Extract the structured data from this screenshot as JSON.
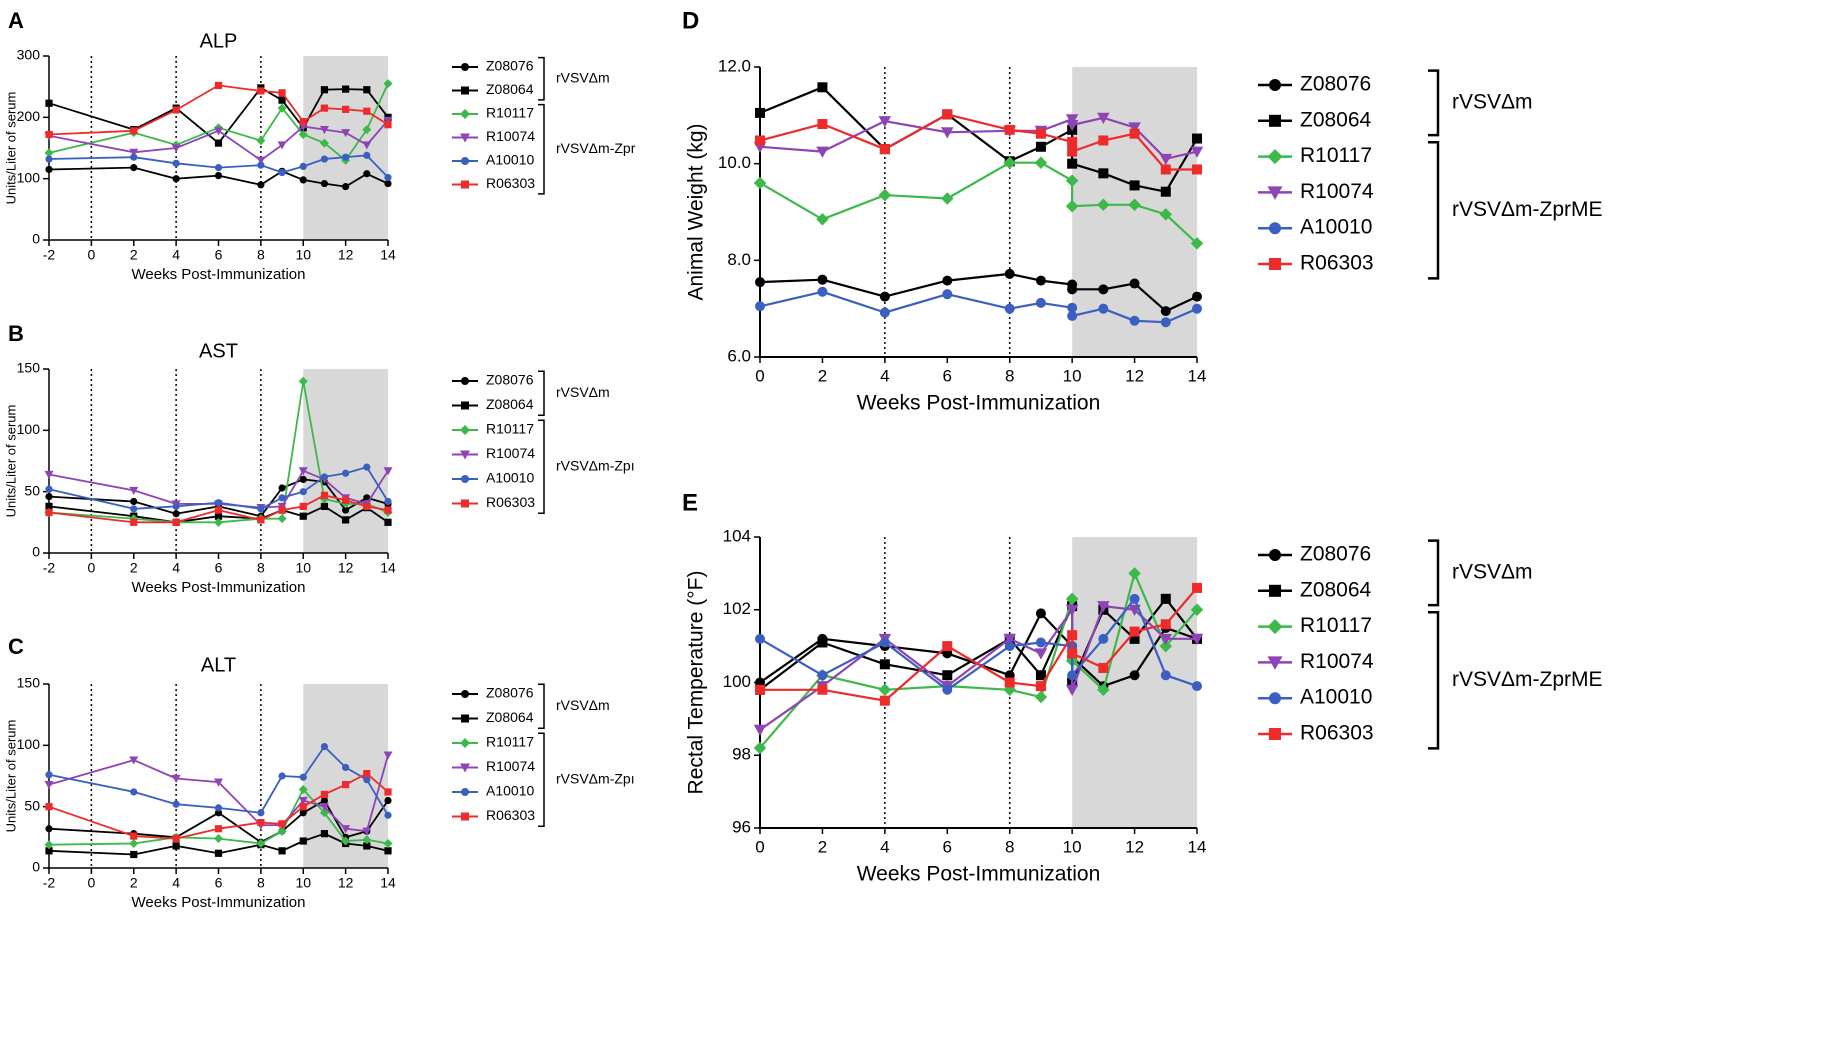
{
  "figure": {
    "x_label": "Weeks Post-Immunization",
    "groups": [
      "rVSVΔm",
      "rVSVΔm-ZprME"
    ],
    "groups_small": [
      "rVSVΔm",
      "rVSVΔm-Zpr",
      "rVSVΔm-Zpı",
      "rVSVΔm-Zpı"
    ]
  },
  "series_meta": [
    {
      "name": "Z08076",
      "color": "#000000",
      "marker": "circle"
    },
    {
      "name": "Z08064",
      "color": "#000000",
      "marker": "square"
    },
    {
      "name": "R10117",
      "color": "#3cb94a",
      "marker": "diamond"
    },
    {
      "name": "R10074",
      "color": "#8e44b5",
      "marker": "triangle-down"
    },
    {
      "name": "A10010",
      "color": "#3b5fc0",
      "marker": "circle"
    },
    {
      "name": "R06303",
      "color": "#ee2a2a",
      "marker": "square"
    }
  ],
  "chart_data": [
    {
      "panel": "A",
      "title": "ALP",
      "type": "line",
      "xlabel": "Weeks Post-Immunization",
      "ylabel": "Units/Liter of serum",
      "xlim": [
        -2,
        14
      ],
      "ylim": [
        0,
        300
      ],
      "xticks": [
        -2,
        0,
        2,
        4,
        6,
        8,
        10,
        12,
        14
      ],
      "yticks": [
        0,
        100,
        200,
        300
      ],
      "shaded": [
        10,
        14
      ],
      "vlines": [
        0,
        4,
        8
      ],
      "series": [
        {
          "name": "Z08076",
          "x": [
            -2,
            2,
            4,
            6,
            8,
            9,
            10,
            11,
            12,
            13,
            14
          ],
          "values": [
            115,
            118,
            100,
            105,
            90,
            112,
            98,
            92,
            87,
            108,
            92
          ]
        },
        {
          "name": "Z08064",
          "x": [
            -2,
            2,
            4,
            6,
            8,
            9,
            10,
            11,
            12,
            13,
            14
          ],
          "values": [
            223,
            180,
            215,
            158,
            248,
            228,
            183,
            245,
            246,
            245,
            200
          ]
        },
        {
          "name": "R10117",
          "x": [
            -2,
            2,
            4,
            6,
            8,
            9,
            10,
            11,
            12,
            13,
            14
          ],
          "values": [
            142,
            175,
            155,
            183,
            162,
            215,
            172,
            158,
            130,
            180,
            255
          ]
        },
        {
          "name": "R10074",
          "x": [
            -2,
            2,
            4,
            6,
            8,
            9,
            10,
            11,
            12,
            13,
            14
          ],
          "values": [
            170,
            143,
            150,
            178,
            130,
            155,
            185,
            180,
            175,
            155,
            195
          ]
        },
        {
          "name": "A10010",
          "x": [
            -2,
            2,
            4,
            6,
            8,
            9,
            10,
            11,
            12,
            13,
            14
          ],
          "values": [
            132,
            135,
            125,
            118,
            122,
            110,
            120,
            132,
            135,
            138,
            102
          ]
        },
        {
          "name": "R06303",
          "x": [
            -2,
            2,
            4,
            6,
            8,
            9,
            10,
            11,
            12,
            13,
            14
          ],
          "values": [
            172,
            178,
            212,
            252,
            243,
            240,
            193,
            215,
            213,
            210,
            188
          ]
        }
      ]
    },
    {
      "panel": "B",
      "title": "AST",
      "type": "line",
      "xlabel": "Weeks Post-Immunization",
      "ylabel": "Units/Liter of serum",
      "xlim": [
        -2,
        14
      ],
      "ylim": [
        0,
        150
      ],
      "xticks": [
        -2,
        0,
        2,
        4,
        6,
        8,
        10,
        12,
        14
      ],
      "yticks": [
        0,
        50,
        100,
        150
      ],
      "shaded": [
        10,
        14
      ],
      "vlines": [
        0,
        4,
        8
      ],
      "series": [
        {
          "name": "Z08076",
          "x": [
            -2,
            2,
            4,
            6,
            8,
            9,
            10,
            11,
            12,
            13,
            14
          ],
          "values": [
            46,
            42,
            32,
            38,
            30,
            53,
            60,
            58,
            35,
            45,
            40
          ]
        },
        {
          "name": "Z08064",
          "x": [
            -2,
            2,
            4,
            6,
            8,
            9,
            10,
            11,
            12,
            13,
            14
          ],
          "values": [
            38,
            30,
            25,
            30,
            28,
            35,
            30,
            38,
            27,
            37,
            25
          ]
        },
        {
          "name": "R10117",
          "x": [
            -2,
            2,
            4,
            6,
            8,
            9,
            10,
            11,
            12,
            13,
            14
          ],
          "values": [
            33,
            28,
            25,
            25,
            28,
            28,
            140,
            44,
            40,
            40,
            33
          ]
        },
        {
          "name": "R10074",
          "x": [
            -2,
            2,
            4,
            6,
            8,
            9,
            10,
            11,
            12,
            13,
            14
          ],
          "values": [
            64,
            51,
            40,
            40,
            37,
            38,
            67,
            60,
            45,
            40,
            67
          ]
        },
        {
          "name": "A10010",
          "x": [
            -2,
            2,
            4,
            6,
            8,
            9,
            10,
            11,
            12,
            13,
            14
          ],
          "values": [
            52,
            36,
            38,
            41,
            36,
            45,
            50,
            62,
            65,
            70,
            42
          ]
        },
        {
          "name": "R06303",
          "x": [
            -2,
            2,
            4,
            6,
            8,
            9,
            10,
            11,
            12,
            13,
            14
          ],
          "values": [
            33,
            25,
            25,
            35,
            27,
            35,
            38,
            47,
            43,
            38,
            35
          ]
        }
      ]
    },
    {
      "panel": "C",
      "title": "ALT",
      "type": "line",
      "xlabel": "Weeks Post-Immunization",
      "ylabel": "Units/Liter of serum",
      "xlim": [
        -2,
        14
      ],
      "ylim": [
        0,
        150
      ],
      "xticks": [
        -2,
        0,
        2,
        4,
        6,
        8,
        10,
        12,
        14
      ],
      "yticks": [
        0,
        50,
        100,
        150
      ],
      "shaded": [
        10,
        14
      ],
      "vlines": [
        0,
        4,
        8
      ],
      "series": [
        {
          "name": "Z08076",
          "x": [
            -2,
            2,
            4,
            6,
            8,
            9,
            10,
            11,
            12,
            13,
            14
          ],
          "values": [
            32,
            28,
            25,
            45,
            21,
            30,
            45,
            55,
            25,
            30,
            55
          ]
        },
        {
          "name": "Z08064",
          "x": [
            -2,
            2,
            4,
            6,
            8,
            9,
            10,
            11,
            12,
            13,
            14
          ],
          "values": [
            14,
            11,
            18,
            12,
            19,
            14,
            22,
            28,
            20,
            18,
            14
          ]
        },
        {
          "name": "R10117",
          "x": [
            -2,
            2,
            4,
            6,
            8,
            9,
            10,
            11,
            12,
            13,
            14
          ],
          "values": [
            19,
            20,
            25,
            24,
            20,
            30,
            64,
            45,
            22,
            23,
            20
          ]
        },
        {
          "name": "R10074",
          "x": [
            -2,
            2,
            4,
            6,
            8,
            9,
            10,
            11,
            12,
            13,
            14
          ],
          "values": [
            68,
            88,
            73,
            70,
            35,
            35,
            55,
            50,
            32,
            30,
            92
          ]
        },
        {
          "name": "A10010",
          "x": [
            -2,
            2,
            4,
            6,
            8,
            9,
            10,
            11,
            12,
            13,
            14
          ],
          "values": [
            76,
            62,
            52,
            49,
            45,
            75,
            74,
            99,
            82,
            72,
            43
          ]
        },
        {
          "name": "R06303",
          "x": [
            -2,
            2,
            4,
            6,
            8,
            9,
            10,
            11,
            12,
            13,
            14
          ],
          "values": [
            50,
            26,
            24,
            32,
            37,
            36,
            50,
            60,
            68,
            77,
            62
          ]
        }
      ]
    },
    {
      "panel": "D",
      "title": "",
      "type": "line",
      "xlabel": "Weeks Post-Immunization",
      "ylabel": "Animal Weight (kg)",
      "xlim": [
        0,
        14
      ],
      "ylim": [
        6,
        12
      ],
      "xticks": [
        0,
        2,
        4,
        6,
        8,
        10,
        12,
        14
      ],
      "yticks": [
        6,
        8,
        10,
        12
      ],
      "ytick_labels": [
        "6.0",
        "8.0",
        "10.0",
        "12.0"
      ],
      "shaded": [
        10,
        14
      ],
      "vlines": [
        4,
        8
      ],
      "series": [
        {
          "name": "Z08076",
          "x": [
            0,
            2,
            4,
            6,
            8,
            9,
            10,
            10,
            11,
            12,
            13,
            14
          ],
          "values": [
            7.55,
            7.6,
            7.25,
            7.58,
            7.72,
            7.58,
            7.5,
            7.4,
            7.4,
            7.52,
            6.95,
            7.25
          ]
        },
        {
          "name": "Z08064",
          "x": [
            0,
            2,
            4,
            6,
            8,
            9,
            10,
            10,
            11,
            12,
            13,
            14
          ],
          "values": [
            11.05,
            11.58,
            10.3,
            11.02,
            10.05,
            10.35,
            10.7,
            10.0,
            9.8,
            9.55,
            9.42,
            10.52
          ]
        },
        {
          "name": "R10117",
          "x": [
            0,
            2,
            4,
            6,
            8,
            9,
            10,
            10,
            11,
            12,
            13,
            14
          ],
          "values": [
            9.6,
            8.85,
            9.35,
            9.28,
            10.02,
            10.02,
            9.65,
            9.12,
            9.15,
            9.15,
            8.95,
            8.35
          ]
        },
        {
          "name": "R10074",
          "x": [
            0,
            2,
            4,
            6,
            8,
            9,
            10,
            10,
            11,
            12,
            13,
            14
          ],
          "values": [
            10.35,
            10.25,
            10.88,
            10.65,
            10.68,
            10.68,
            10.92,
            10.8,
            10.95,
            10.75,
            10.1,
            10.25
          ]
        },
        {
          "name": "A10010",
          "x": [
            0,
            2,
            4,
            6,
            8,
            9,
            10,
            10,
            11,
            12,
            13,
            14
          ],
          "values": [
            7.05,
            7.35,
            6.92,
            7.3,
            7.0,
            7.12,
            7.02,
            6.85,
            7.0,
            6.75,
            6.72,
            7.0
          ]
        },
        {
          "name": "R06303",
          "x": [
            0,
            2,
            4,
            6,
            8,
            9,
            10,
            10,
            11,
            12,
            13,
            14
          ],
          "values": [
            10.48,
            10.82,
            10.3,
            11.02,
            10.7,
            10.62,
            10.45,
            10.25,
            10.48,
            10.62,
            9.88,
            9.88
          ]
        }
      ]
    },
    {
      "panel": "E",
      "title": "",
      "type": "line",
      "xlabel": "Weeks Post-Immunization",
      "ylabel": "Rectal Temperature (°F)",
      "xlim": [
        0,
        14
      ],
      "ylim": [
        96,
        104
      ],
      "xticks": [
        0,
        2,
        4,
        6,
        8,
        10,
        12,
        14
      ],
      "yticks": [
        96,
        98,
        100,
        102,
        104
      ],
      "shaded": [
        10,
        14
      ],
      "vlines": [
        4,
        8
      ],
      "series": [
        {
          "name": "Z08076",
          "x": [
            0,
            2,
            4,
            6,
            8,
            9,
            10,
            10,
            11,
            12,
            13,
            14
          ],
          "values": [
            100.0,
            101.2,
            101.0,
            100.8,
            100.2,
            101.9,
            101.0,
            100.7,
            99.9,
            100.2,
            101.5,
            101.2
          ]
        },
        {
          "name": "Z08064",
          "x": [
            0,
            2,
            4,
            6,
            8,
            9,
            10,
            10,
            11,
            12,
            13,
            14
          ],
          "values": [
            99.8,
            101.1,
            100.5,
            100.2,
            101.2,
            100.2,
            102.1,
            100.0,
            102.0,
            101.2,
            102.3,
            101.2
          ]
        },
        {
          "name": "R10117",
          "x": [
            0,
            2,
            4,
            6,
            8,
            9,
            10,
            10,
            11,
            12,
            13,
            14
          ],
          "values": [
            98.2,
            100.2,
            99.8,
            99.9,
            99.8,
            99.6,
            102.3,
            100.6,
            99.8,
            103.0,
            101.0,
            102.0
          ]
        },
        {
          "name": "R10074",
          "x": [
            0,
            2,
            4,
            6,
            8,
            9,
            10,
            10,
            11,
            12,
            13,
            14
          ],
          "values": [
            98.7,
            99.9,
            101.2,
            99.9,
            101.2,
            100.8,
            102.0,
            99.8,
            102.1,
            102.0,
            101.2,
            101.2
          ]
        },
        {
          "name": "A10010",
          "x": [
            0,
            2,
            4,
            6,
            8,
            9,
            10,
            10,
            11,
            12,
            13,
            14
          ],
          "values": [
            101.2,
            100.2,
            101.1,
            99.8,
            101.0,
            101.1,
            101.0,
            100.2,
            101.2,
            102.3,
            100.2,
            99.9
          ]
        },
        {
          "name": "R06303",
          "x": [
            0,
            2,
            4,
            6,
            8,
            9,
            10,
            10,
            11,
            12,
            13,
            14
          ],
          "values": [
            99.8,
            99.8,
            99.5,
            101.0,
            100.0,
            99.9,
            101.3,
            100.8,
            100.4,
            101.4,
            101.6,
            102.6
          ]
        }
      ]
    }
  ]
}
